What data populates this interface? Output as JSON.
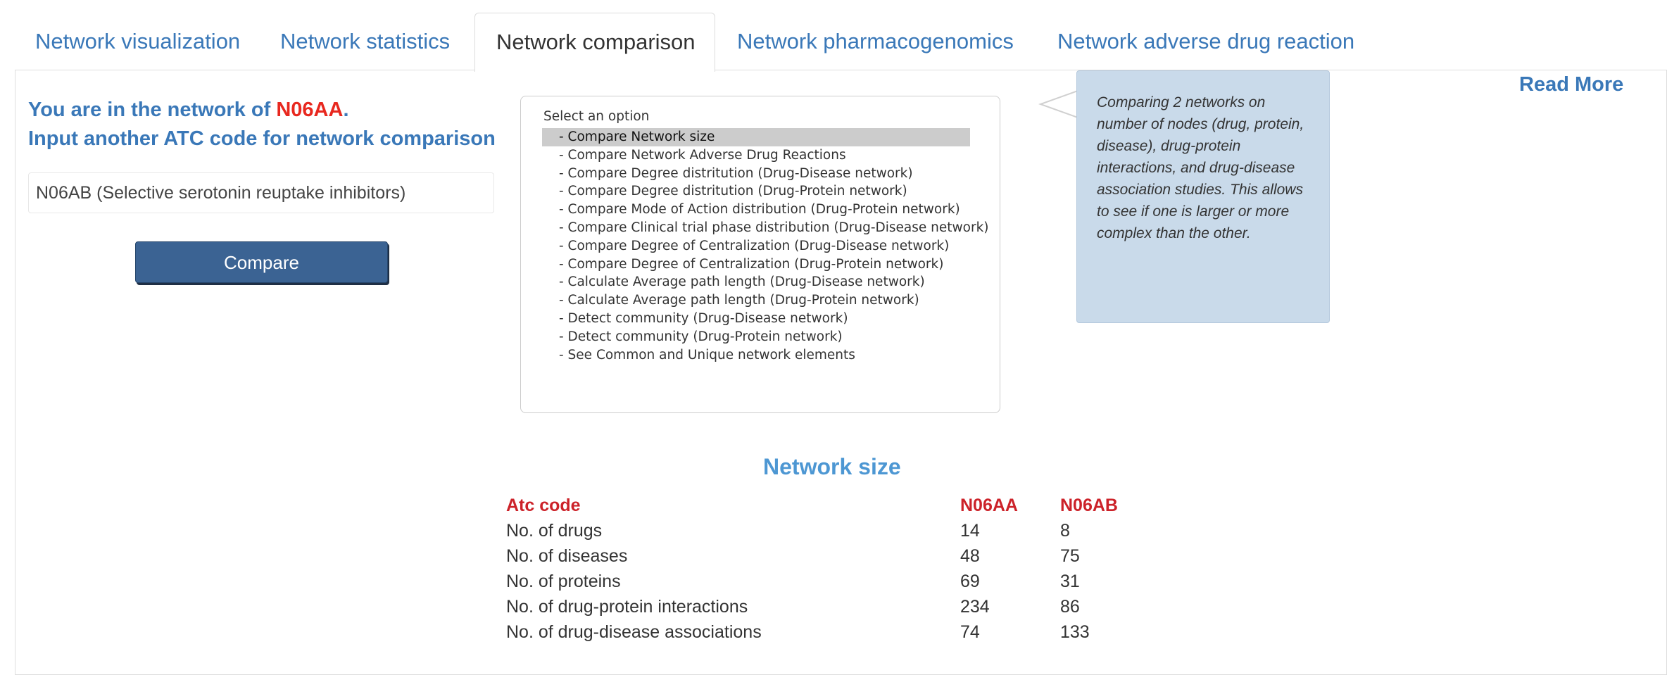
{
  "tabs": [
    {
      "label": "Network visualization"
    },
    {
      "label": "Network statistics"
    },
    {
      "label": "Network comparison"
    },
    {
      "label": "Network pharmacogenomics"
    },
    {
      "label": "Network adverse drug reaction"
    }
  ],
  "active_tab": "Network comparison",
  "left": {
    "line1_prefix": "You are in the network of ",
    "current_atc": "N06AA",
    "line1_suffix": ".",
    "line2": "Input another ATC code for network comparison",
    "input_value": "N06AB (Selective serotonin reuptake inhibitors)",
    "compare_label": "Compare"
  },
  "options": {
    "label": "Select an option",
    "items": [
      "- Compare Network size",
      "- Compare Network Adverse Drug Reactions",
      "- Compare Degree distritution (Drug-Disease network)",
      "- Compare Degree distritution (Drug-Protein network)",
      "- Compare Mode of Action distribution (Drug-Protein network)",
      "- Compare Clinical trial phase distribution (Drug-Disease network)",
      "- Compare Degree of Centralization (Drug-Disease network)",
      "- Compare Degree of Centralization (Drug-Protein network)",
      "- Calculate Average path length (Drug-Disease network)",
      "- Calculate Average path length (Drug-Protein network)",
      "- Detect community (Drug-Disease network)",
      "- Detect community (Drug-Protein network)",
      "- See Common and Unique network elements"
    ],
    "selected": "- Compare Network size"
  },
  "tooltip": {
    "text": "Comparing 2 networks on number of nodes (drug, protein, disease), drug-protein interactions, and drug-disease association studies. This allows to see if one is larger or more complex than the other."
  },
  "read_more": "Read More",
  "network_size": {
    "title": "Network size",
    "header": [
      "Atc code",
      "N06AA",
      "N06AB"
    ],
    "rows": [
      [
        "No. of drugs",
        "14",
        "8"
      ],
      [
        "No. of diseases",
        "48",
        "75"
      ],
      [
        "No. of proteins",
        "69",
        "31"
      ],
      [
        "No. of drug-protein interactions",
        "234",
        "86"
      ],
      [
        "No. of drug-disease associations",
        "74",
        "133"
      ]
    ]
  },
  "colors": {
    "link_blue": "#3a78b8",
    "atc_red": "#e8281f",
    "table_header_red": "#cc2229",
    "button_blue": "#3b6393",
    "tooltip_bg": "#c9daea"
  }
}
